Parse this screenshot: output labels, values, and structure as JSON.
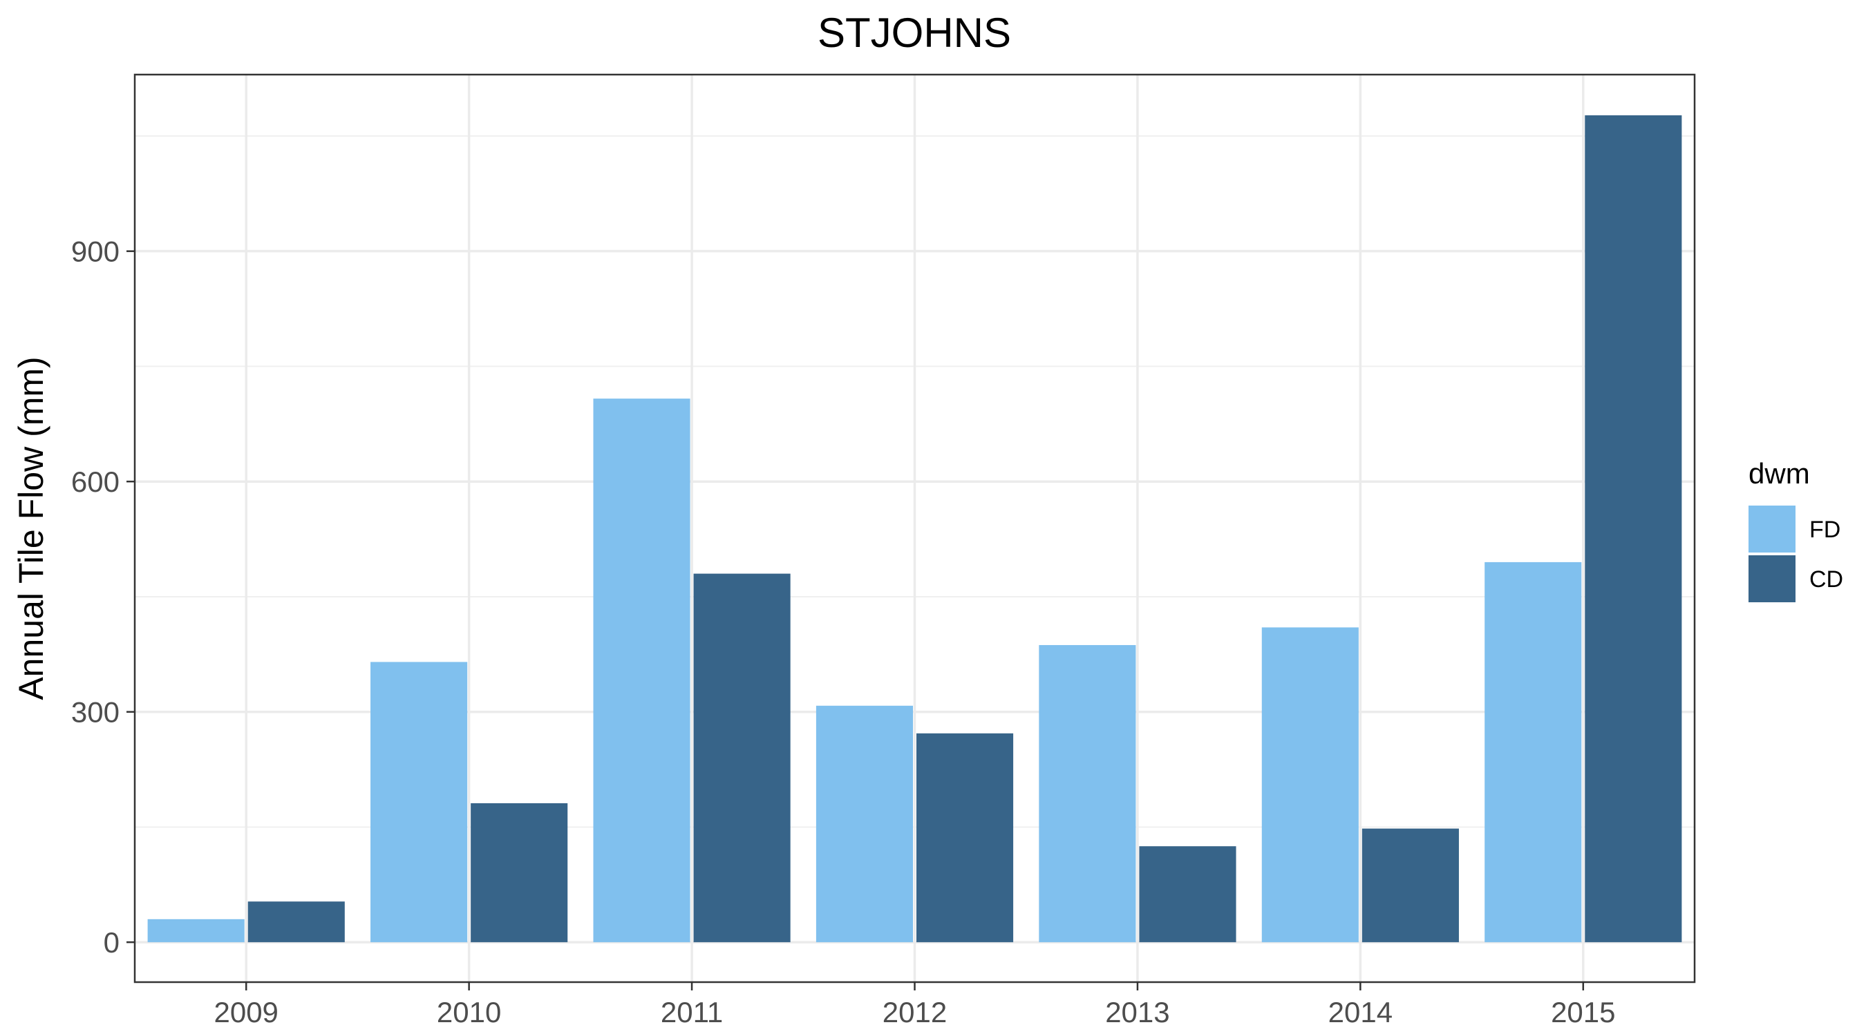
{
  "chart_data": {
    "type": "bar",
    "title": "STJOHNS",
    "xlabel": "",
    "ylabel": "Annual Tile Flow (mm)",
    "categories": [
      "2009",
      "2010",
      "2011",
      "2012",
      "2013",
      "2014",
      "2015"
    ],
    "series": [
      {
        "name": "FD",
        "color": "#80c0ee",
        "values": [
          30,
          365,
          708,
          308,
          387,
          410,
          495
        ]
      },
      {
        "name": "CD",
        "color": "#376489",
        "values": [
          53,
          181,
          480,
          272,
          125,
          148,
          1077
        ]
      }
    ],
    "ylim": [
      -52,
      1130
    ],
    "yticks": [
      0,
      300,
      600,
      900
    ],
    "ytick_labels": [
      "0",
      "300",
      "600",
      "900"
    ],
    "grid": true,
    "legend": {
      "title": "dwm",
      "position": "right"
    }
  }
}
